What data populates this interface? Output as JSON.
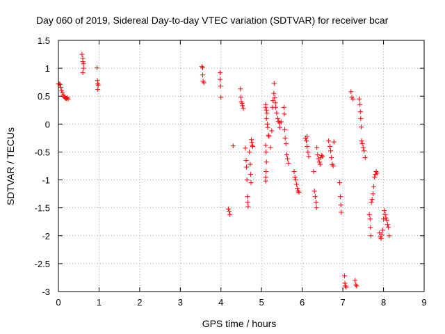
{
  "chart_data": {
    "type": "scatter",
    "title": "Day 060 of 2019, Sidereal Day-to-day VTEC variation (SDTVAR) for receiver bcar",
    "xlabel": "GPS time / hours",
    "ylabel": "SDTVAR / TECUs",
    "xlim": [
      0,
      9
    ],
    "ylim": [
      -3,
      1.5
    ],
    "xticks": [
      0,
      1,
      2,
      3,
      4,
      5,
      6,
      7,
      8,
      9
    ],
    "xtick_labels": [
      "0",
      "1",
      "2",
      "3",
      "4",
      "5",
      "6",
      "7",
      "8",
      "9"
    ],
    "yticks": [
      -3,
      -2.5,
      -2,
      -1.5,
      -1,
      -0.5,
      0,
      0.5,
      1,
      1.5
    ],
    "ytick_labels": [
      "-3",
      "-2.5",
      "-2",
      "-1.5",
      "-1",
      "-0.5",
      "0",
      "0.5",
      "1",
      "1.5"
    ],
    "grid": true,
    "marker": "+",
    "series": [
      {
        "name": "SDTVAR",
        "color": "#ff0000",
        "points": [
          [
            0.0,
            0.72
          ],
          [
            0.02,
            0.72
          ],
          [
            0.04,
            0.71
          ],
          [
            0.06,
            0.66
          ],
          [
            0.08,
            0.6
          ],
          [
            0.1,
            0.56
          ],
          [
            0.12,
            0.52
          ],
          [
            0.14,
            0.49
          ],
          [
            0.16,
            0.47
          ],
          [
            0.18,
            0.46
          ],
          [
            0.2,
            0.46
          ],
          [
            0.22,
            0.47
          ],
          [
            0.24,
            0.45
          ],
          [
            0.58,
            1.25
          ],
          [
            0.6,
            1.18
          ],
          [
            0.6,
            1.12
          ],
          [
            0.62,
            1.08
          ],
          [
            0.62,
            1.0
          ],
          [
            0.6,
            0.92
          ],
          [
            0.95,
            1.01
          ],
          [
            0.96,
            0.78
          ],
          [
            0.97,
            0.72
          ],
          [
            0.98,
            0.7
          ],
          [
            0.97,
            0.62
          ],
          [
            3.53,
            1.03
          ],
          [
            3.55,
            1.01
          ],
          [
            3.55,
            0.88
          ],
          [
            3.56,
            0.77
          ],
          [
            3.58,
            0.74
          ],
          [
            3.98,
            0.92
          ],
          [
            3.98,
            0.8
          ],
          [
            3.99,
            0.68
          ],
          [
            4.0,
            0.48
          ],
          [
            4.18,
            -1.52
          ],
          [
            4.2,
            -1.56
          ],
          [
            4.22,
            -1.62
          ],
          [
            4.3,
            -0.39
          ],
          [
            4.48,
            0.63
          ],
          [
            4.49,
            0.48
          ],
          [
            4.5,
            0.4
          ],
          [
            4.52,
            0.37
          ],
          [
            4.53,
            0.33
          ],
          [
            4.55,
            0.28
          ],
          [
            4.6,
            -0.43
          ],
          [
            4.62,
            -0.65
          ],
          [
            4.63,
            -0.77
          ],
          [
            4.64,
            -1.0
          ],
          [
            4.65,
            -1.3
          ],
          [
            4.66,
            -1.4
          ],
          [
            4.67,
            -1.48
          ],
          [
            4.7,
            -0.5
          ],
          [
            4.72,
            -0.72
          ],
          [
            4.73,
            -0.9
          ],
          [
            4.74,
            -1.05
          ],
          [
            4.75,
            -0.28
          ],
          [
            4.76,
            -0.33
          ],
          [
            4.77,
            -0.38
          ],
          [
            4.78,
            -0.4
          ],
          [
            5.1,
            0.35
          ],
          [
            5.1,
            0.3
          ],
          [
            5.12,
            0.25
          ],
          [
            5.13,
            0.2
          ],
          [
            5.12,
            0.1
          ],
          [
            5.14,
            0.0
          ],
          [
            5.15,
            -0.06
          ],
          [
            5.17,
            -0.2
          ],
          [
            5.18,
            -0.22
          ],
          [
            5.1,
            -0.38
          ],
          [
            5.11,
            -0.5
          ],
          [
            5.12,
            -0.68
          ],
          [
            5.11,
            -0.85
          ],
          [
            5.1,
            -0.95
          ],
          [
            5.1,
            -1.02
          ],
          [
            5.22,
            -0.42
          ],
          [
            5.25,
            -0.12
          ],
          [
            5.27,
            0.3
          ],
          [
            5.28,
            0.42
          ],
          [
            5.3,
            0.55
          ],
          [
            5.31,
            0.73
          ],
          [
            5.32,
            0.47
          ],
          [
            5.34,
            0.38
          ],
          [
            5.35,
            0.3
          ],
          [
            5.37,
            0.2
          ],
          [
            5.4,
            0.1
          ],
          [
            5.42,
            0.05
          ],
          [
            5.44,
            0.02
          ],
          [
            5.45,
            -0.06
          ],
          [
            5.48,
            0.04
          ],
          [
            5.55,
            0.3
          ],
          [
            5.56,
            0.18
          ],
          [
            5.57,
            -0.1
          ],
          [
            5.58,
            -0.25
          ],
          [
            5.6,
            -0.35
          ],
          [
            5.62,
            -0.55
          ],
          [
            5.64,
            -0.62
          ],
          [
            5.66,
            -0.7
          ],
          [
            5.8,
            -0.85
          ],
          [
            5.82,
            -0.95
          ],
          [
            5.84,
            -1.0
          ],
          [
            5.86,
            -1.08
          ],
          [
            5.88,
            -1.15
          ],
          [
            5.9,
            -1.2
          ],
          [
            5.92,
            -1.22
          ],
          [
            6.08,
            -0.25
          ],
          [
            6.1,
            -0.3
          ],
          [
            6.12,
            -0.4
          ],
          [
            6.14,
            -0.5
          ],
          [
            6.16,
            -0.58
          ],
          [
            6.12,
            -0.22
          ],
          [
            6.28,
            -0.85
          ],
          [
            6.3,
            -1.2
          ],
          [
            6.32,
            -1.3
          ],
          [
            6.34,
            -1.4
          ],
          [
            6.35,
            -1.5
          ],
          [
            6.36,
            -0.42
          ],
          [
            6.38,
            -0.55
          ],
          [
            6.4,
            -0.62
          ],
          [
            6.42,
            -0.68
          ],
          [
            6.44,
            -0.72
          ],
          [
            6.46,
            -0.6
          ],
          [
            6.48,
            -0.56
          ],
          [
            6.5,
            -0.58
          ],
          [
            6.65,
            -0.3
          ],
          [
            6.68,
            -0.4
          ],
          [
            6.7,
            -0.48
          ],
          [
            6.72,
            -0.6
          ],
          [
            6.74,
            -0.72
          ],
          [
            6.76,
            -0.75
          ],
          [
            6.78,
            -0.32
          ],
          [
            6.92,
            -1.05
          ],
          [
            6.94,
            -1.3
          ],
          [
            6.95,
            -1.45
          ],
          [
            6.96,
            -1.58
          ],
          [
            7.04,
            -2.72
          ],
          [
            7.05,
            -2.85
          ],
          [
            7.06,
            -2.9
          ],
          [
            7.08,
            -2.92
          ],
          [
            7.2,
            0.58
          ],
          [
            7.22,
            0.48
          ],
          [
            7.25,
            0.45
          ],
          [
            7.3,
            -2.8
          ],
          [
            7.32,
            -2.88
          ],
          [
            7.34,
            -2.9
          ],
          [
            7.4,
            0.45
          ],
          [
            7.42,
            0.35
          ],
          [
            7.43,
            0.22
          ],
          [
            7.44,
            0.1
          ],
          [
            7.45,
            -0.05
          ],
          [
            7.46,
            -0.3
          ],
          [
            7.48,
            -0.35
          ],
          [
            7.5,
            -0.42
          ],
          [
            7.52,
            -0.48
          ],
          [
            7.55,
            -0.6
          ],
          [
            7.65,
            -1.62
          ],
          [
            7.67,
            -1.7
          ],
          [
            7.68,
            -1.85
          ],
          [
            7.69,
            -2.0
          ],
          [
            7.7,
            -1.4
          ],
          [
            7.72,
            -1.35
          ],
          [
            7.74,
            -1.25
          ],
          [
            7.76,
            -1.12
          ],
          [
            7.78,
            -0.95
          ],
          [
            7.8,
            -0.9
          ],
          [
            7.82,
            -0.85
          ],
          [
            7.84,
            -0.88
          ],
          [
            7.9,
            -1.95
          ],
          [
            7.92,
            -2.02
          ],
          [
            7.94,
            -2.05
          ],
          [
            7.96,
            -1.98
          ],
          [
            7.98,
            -1.9
          ],
          [
            8.0,
            -1.7
          ],
          [
            8.02,
            -1.55
          ],
          [
            8.04,
            -1.62
          ],
          [
            8.06,
            -1.68
          ],
          [
            8.08,
            -1.72
          ],
          [
            8.1,
            -1.8
          ],
          [
            8.12,
            -1.85
          ],
          [
            8.14,
            -2.0
          ]
        ]
      }
    ]
  }
}
